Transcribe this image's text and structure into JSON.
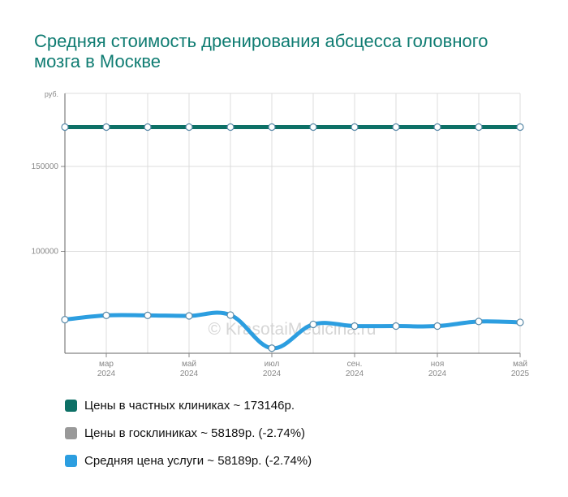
{
  "chart_data": {
    "type": "line",
    "title": "Средняя стоимость дренирования абсцесса головного мозга в Москве",
    "y_unit_label": "руб.",
    "ylim": [
      40000,
      193000
    ],
    "y_ticks": [
      {
        "value": 100000,
        "label": "100000"
      },
      {
        "value": 150000,
        "label": "150000"
      }
    ],
    "x_ticks": [
      {
        "index": 1,
        "month": "мар",
        "year": "2024"
      },
      {
        "index": 3,
        "month": "май",
        "year": "2024"
      },
      {
        "index": 5,
        "month": "июл",
        "year": "2024"
      },
      {
        "index": 7,
        "month": "сен.",
        "year": "2024"
      },
      {
        "index": 9,
        "month": "ноя",
        "year": "2024"
      },
      {
        "index": 11,
        "month": "май",
        "year": "2025"
      }
    ],
    "grid": true,
    "series": [
      {
        "key": "private",
        "color": "#0d7066",
        "values": [
          173146,
          173146,
          173146,
          173146,
          173146,
          173146,
          173146,
          173146,
          173146,
          173146,
          173146,
          173146
        ]
      },
      {
        "key": "average",
        "color": "#2c9ee0",
        "values": [
          59800,
          62300,
          62300,
          62000,
          62500,
          43000,
          57000,
          56000,
          56000,
          56000,
          58700,
          58189
        ]
      }
    ],
    "legend": [
      {
        "label": "Цены в частных клиниках ~ 173146р.",
        "color": "#0d7066"
      },
      {
        "label": "Цены в госклиниках ~ 58189р. (-2.74%)",
        "color": "#999999"
      },
      {
        "label": "Средняя цена услуги ~ 58189р. (-2.74%)",
        "color": "#2c9ee0"
      }
    ],
    "legend_position": "bottom",
    "watermark": "© KrasotaiMedicina.ru"
  }
}
